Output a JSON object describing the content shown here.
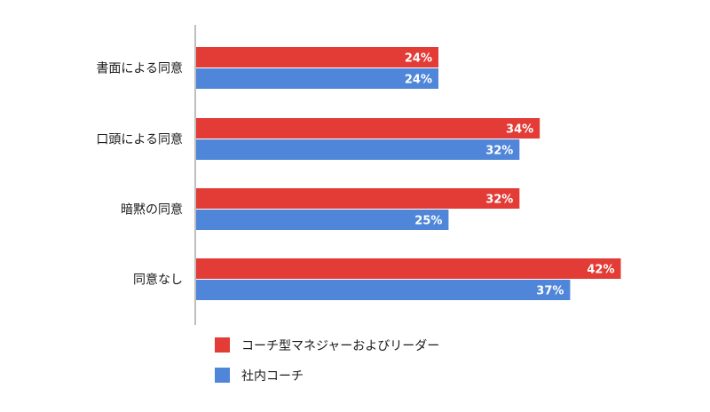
{
  "chart_data": {
    "type": "bar",
    "orientation": "horizontal",
    "categories": [
      "書面による同意",
      "口頭による同意",
      "暗黙の同意",
      "同意なし"
    ],
    "series": [
      {
        "name": "コーチ型マネジャーおよびリーダー",
        "color": "#e33b35",
        "values": [
          24,
          34,
          32,
          42
        ],
        "labels": [
          "24%",
          "34%",
          "32%",
          "42%"
        ]
      },
      {
        "name": "社内コーチ",
        "color": "#4f86d9",
        "values": [
          24,
          32,
          25,
          37
        ],
        "labels": [
          "24%",
          "32%",
          "25%",
          "37%"
        ]
      }
    ],
    "xlim": [
      0,
      50
    ],
    "grid": false,
    "legend": "bottom-left",
    "axis_color": "#bfbfbf"
  }
}
